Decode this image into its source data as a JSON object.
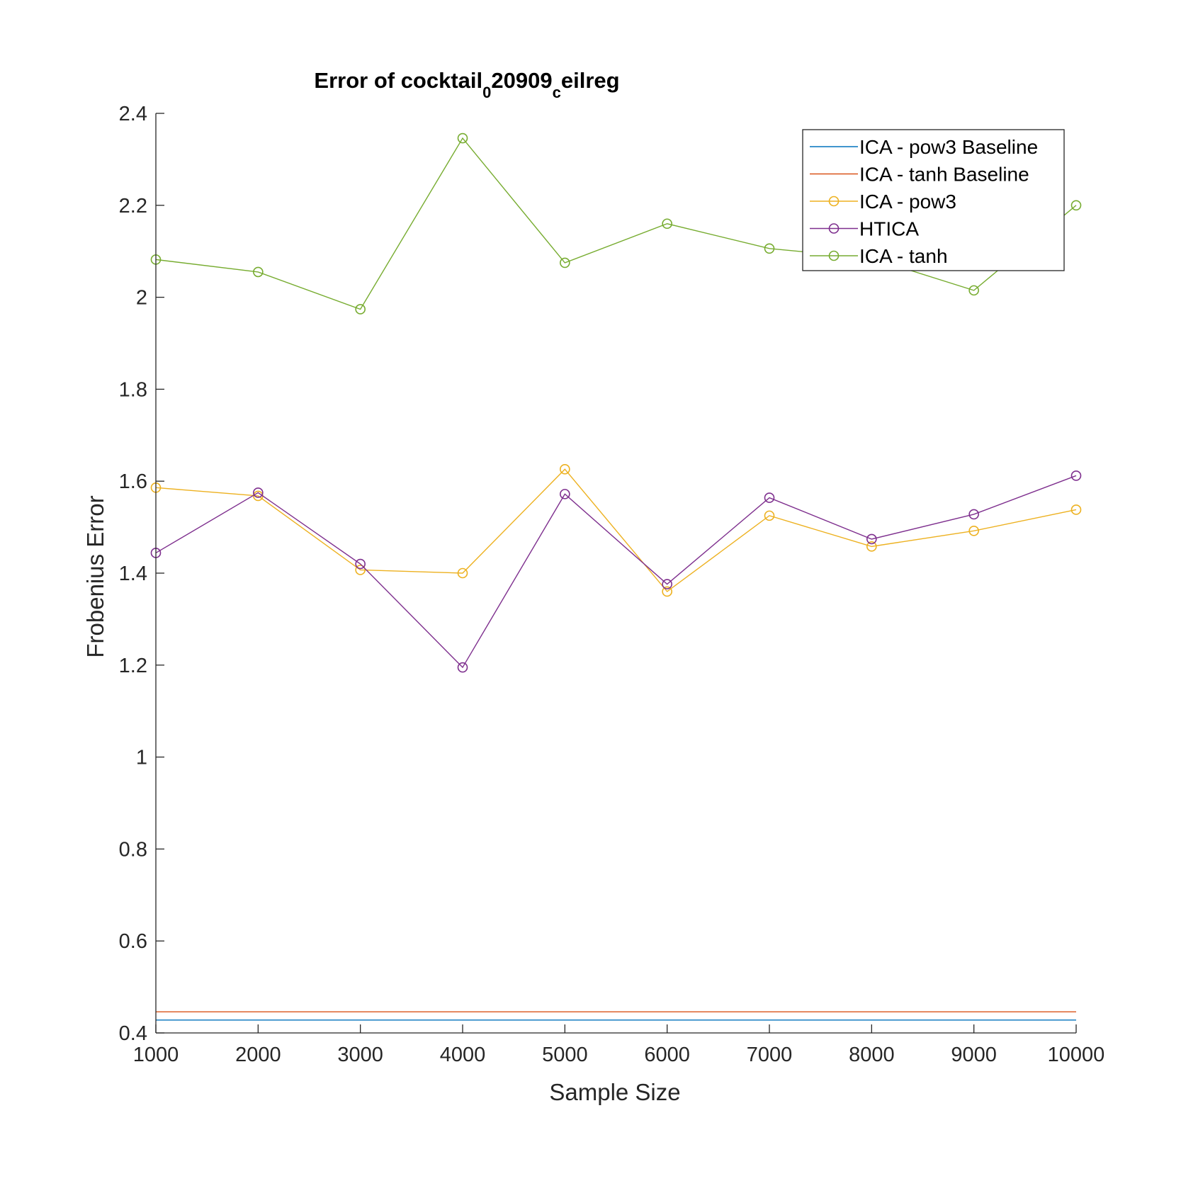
{
  "chart_data": {
    "type": "line",
    "title": "Error of cocktail",
    "title_sub1": "0",
    "title_mid": "20909",
    "title_sub2": "c",
    "title_end": "eilreg",
    "xlabel": "Sample Size",
    "ylabel": "Frobenius Error",
    "xlim": [
      1000,
      10000
    ],
    "ylim": [
      0.4,
      2.4
    ],
    "xticks": [
      1000,
      2000,
      3000,
      4000,
      5000,
      6000,
      7000,
      8000,
      9000,
      10000
    ],
    "xtick_labels": [
      "1000",
      "2000",
      "3000",
      "4000",
      "5000",
      "6000",
      "7000",
      "8000",
      "9000",
      "10000"
    ],
    "yticks": [
      0.4,
      0.6,
      0.8,
      1.0,
      1.2,
      1.4,
      1.6,
      1.8,
      2.0,
      2.2,
      2.4
    ],
    "ytick_labels": [
      "0.4",
      "0.6",
      "0.8",
      "1",
      "1.2",
      "1.4",
      "1.6",
      "1.8",
      "2",
      "2.2",
      "2.4"
    ],
    "grid": false,
    "legend_position": "top-right",
    "x": [
      1000,
      2000,
      3000,
      4000,
      5000,
      6000,
      7000,
      8000,
      9000,
      10000
    ],
    "series": [
      {
        "name": "ICA - pow3 Baseline",
        "color": "#0072BD",
        "marker": "none",
        "values": [
          0.428,
          0.428,
          0.428,
          0.428,
          0.428,
          0.428,
          0.428,
          0.428,
          0.428,
          0.428
        ]
      },
      {
        "name": "ICA - tanh Baseline",
        "color": "#D95319",
        "marker": "none",
        "values": [
          0.446,
          0.446,
          0.446,
          0.446,
          0.446,
          0.446,
          0.446,
          0.446,
          0.446,
          0.446
        ]
      },
      {
        "name": "ICA - pow3",
        "color": "#EDB120",
        "marker": "circle",
        "values": [
          1.586,
          1.568,
          1.407,
          1.4,
          1.626,
          1.36,
          1.525,
          1.458,
          1.492,
          1.538
        ]
      },
      {
        "name": "HTICA",
        "color": "#7E2F8E",
        "marker": "circle",
        "values": [
          1.444,
          1.575,
          1.42,
          1.195,
          1.572,
          1.376,
          1.564,
          1.474,
          1.528,
          1.612
        ]
      },
      {
        "name": "ICA - tanh",
        "color": "#77AC30",
        "marker": "circle",
        "values": [
          2.082,
          2.055,
          1.974,
          2.346,
          2.075,
          2.16,
          2.106,
          2.085,
          2.015,
          2.2
        ]
      }
    ]
  }
}
